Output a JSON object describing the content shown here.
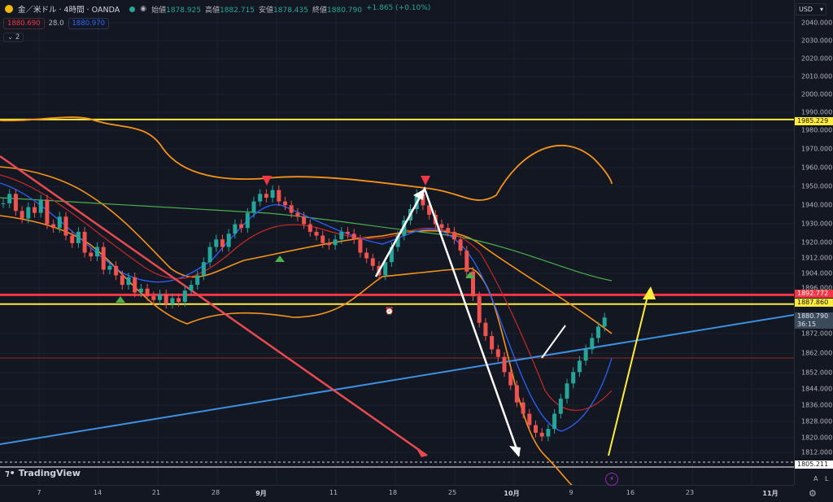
{
  "header": {
    "symbol": "金／米ドル · 4時間 · OANDA",
    "ohlc": [
      {
        "label": "始値",
        "value": "1878.925"
      },
      {
        "label": "高値",
        "value": "1882.715"
      },
      {
        "label": "安値",
        "value": "1878.435"
      },
      {
        "label": "終値",
        "value": "1880.790"
      },
      {
        "label": "",
        "value": "+1.865 (+0.10%)"
      }
    ],
    "sell_price": "1880.690",
    "spread": "28.0",
    "buy_price": "1880.970",
    "indicators_count": "2"
  },
  "currency": "USD",
  "colors": {
    "background": "#131722",
    "bullish": "#26a69a",
    "bearish": "#ef5350",
    "yellow_line": "#ffeb3b",
    "red_line": "#f23645",
    "trend_blue": "#3d8fe0",
    "bollinger": "#f7931a",
    "ma_green": "#4caf50",
    "ma_blue": "#2962ff",
    "ma_red": "#b71c1c"
  },
  "y_axis": {
    "ticks": [
      "2040.000",
      "2030.000",
      "2020.000",
      "2010.000",
      "2000.000",
      "1990.000",
      "1980.000",
      "1970.000",
      "1960.000",
      "1950.000",
      "1940.000",
      "1930.000",
      "1920.000",
      "1912.000",
      "1904.000",
      "1896.000",
      "1872.000",
      "1862.000",
      "1852.000",
      "1844.000",
      "1836.000",
      "1828.000",
      "1820.000",
      "1812.000"
    ],
    "price_labels": {
      "level_1985": "1985.229",
      "level_1892": "1892.772",
      "level_1887": "1887.860",
      "current_price": "1880.790",
      "countdown": "36:15",
      "level_1805": "1805.211"
    }
  },
  "x_axis": {
    "ticks": [
      {
        "label": "7",
        "bold": false
      },
      {
        "label": "14",
        "bold": false
      },
      {
        "label": "21",
        "bold": false
      },
      {
        "label": "28",
        "bold": false
      },
      {
        "label": "9月",
        "bold": true
      },
      {
        "label": "11",
        "bold": false
      },
      {
        "label": "18",
        "bold": false
      },
      {
        "label": "25",
        "bold": false
      },
      {
        "label": "10月",
        "bold": true
      },
      {
        "label": "9",
        "bold": false
      },
      {
        "label": "16",
        "bold": false
      },
      {
        "label": "23",
        "bold": false
      },
      {
        "label": "11月",
        "bold": true
      }
    ]
  },
  "logo_text": "TradingView",
  "auto_scale_label": "A",
  "log_label": "L",
  "chart_data": {
    "type": "candlestick",
    "title": "",
    "horizontal_levels": [
      1985.229,
      1892.772,
      1887.86,
      1805.211,
      1859
    ],
    "ylim": [
      1800,
      2046
    ],
    "closes": [
      1941,
      1946,
      1937,
      1933,
      1939,
      1936,
      1943,
      1930,
      1928,
      1934,
      1924,
      1920,
      1926,
      1915,
      1913,
      1918,
      1906,
      1908,
      1903,
      1898,
      1902,
      1894,
      1896,
      1892,
      1890,
      1893,
      1888,
      1891,
      1889,
      1895,
      1898,
      1903,
      1910,
      1918,
      1922,
      1918,
      1925,
      1930,
      1928,
      1936,
      1942,
      1946,
      1944,
      1948,
      1942,
      1940,
      1936,
      1934,
      1930,
      1926,
      1924,
      1920,
      1919,
      1922,
      1926,
      1925,
      1922,
      1915,
      1912,
      1908,
      1903,
      1910,
      1918,
      1924,
      1932,
      1938,
      1946,
      1940,
      1935,
      1930,
      1928,
      1926,
      1922,
      1916,
      1905,
      1892,
      1878,
      1871,
      1864,
      1860,
      1852,
      1845,
      1836,
      1830,
      1824,
      1820,
      1818,
      1822,
      1830,
      1838,
      1846,
      1852,
      1858,
      1864,
      1870,
      1876,
      1880.79
    ]
  }
}
